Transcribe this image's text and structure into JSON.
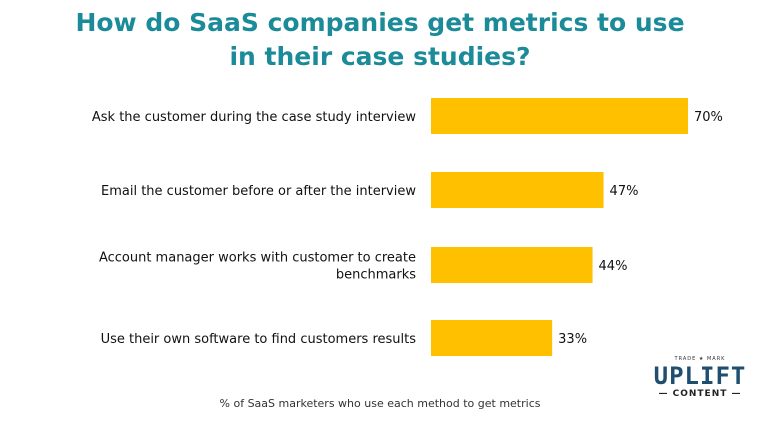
{
  "chart_data": {
    "type": "bar",
    "orientation": "horizontal",
    "title": "How do SaaS companies get metrics to use in their case studies?",
    "title_lines": [
      "How do SaaS companies get metrics to use",
      "in their case studies?"
    ],
    "categories": [
      "Ask the customer during the case study interview",
      "Email the customer before or after the interview",
      "Account manager works with customer to create benchmarks",
      "Use their own software to find customers results"
    ],
    "category_lines": [
      [
        "Ask the customer during the case study interview"
      ],
      [
        "Email the customer before or after the interview"
      ],
      [
        "Account manager works with customer to create",
        "benchmarks"
      ],
      [
        "Use their own software to find customers results"
      ]
    ],
    "values": [
      70,
      47,
      44,
      33
    ],
    "value_labels": [
      "70%",
      "47%",
      "44%",
      "33%"
    ],
    "xlim": [
      0,
      100
    ],
    "xlabel": "% of SaaS marketers who use each method to get metrics",
    "grid": false,
    "bar_color": "#FFC000",
    "title_color": "#1B8A99"
  },
  "logo": {
    "trademark": "TRADE ★ MARK",
    "name": "UPLIFT",
    "sub": "— CONTENT —",
    "color": "#1F4E6E"
  }
}
